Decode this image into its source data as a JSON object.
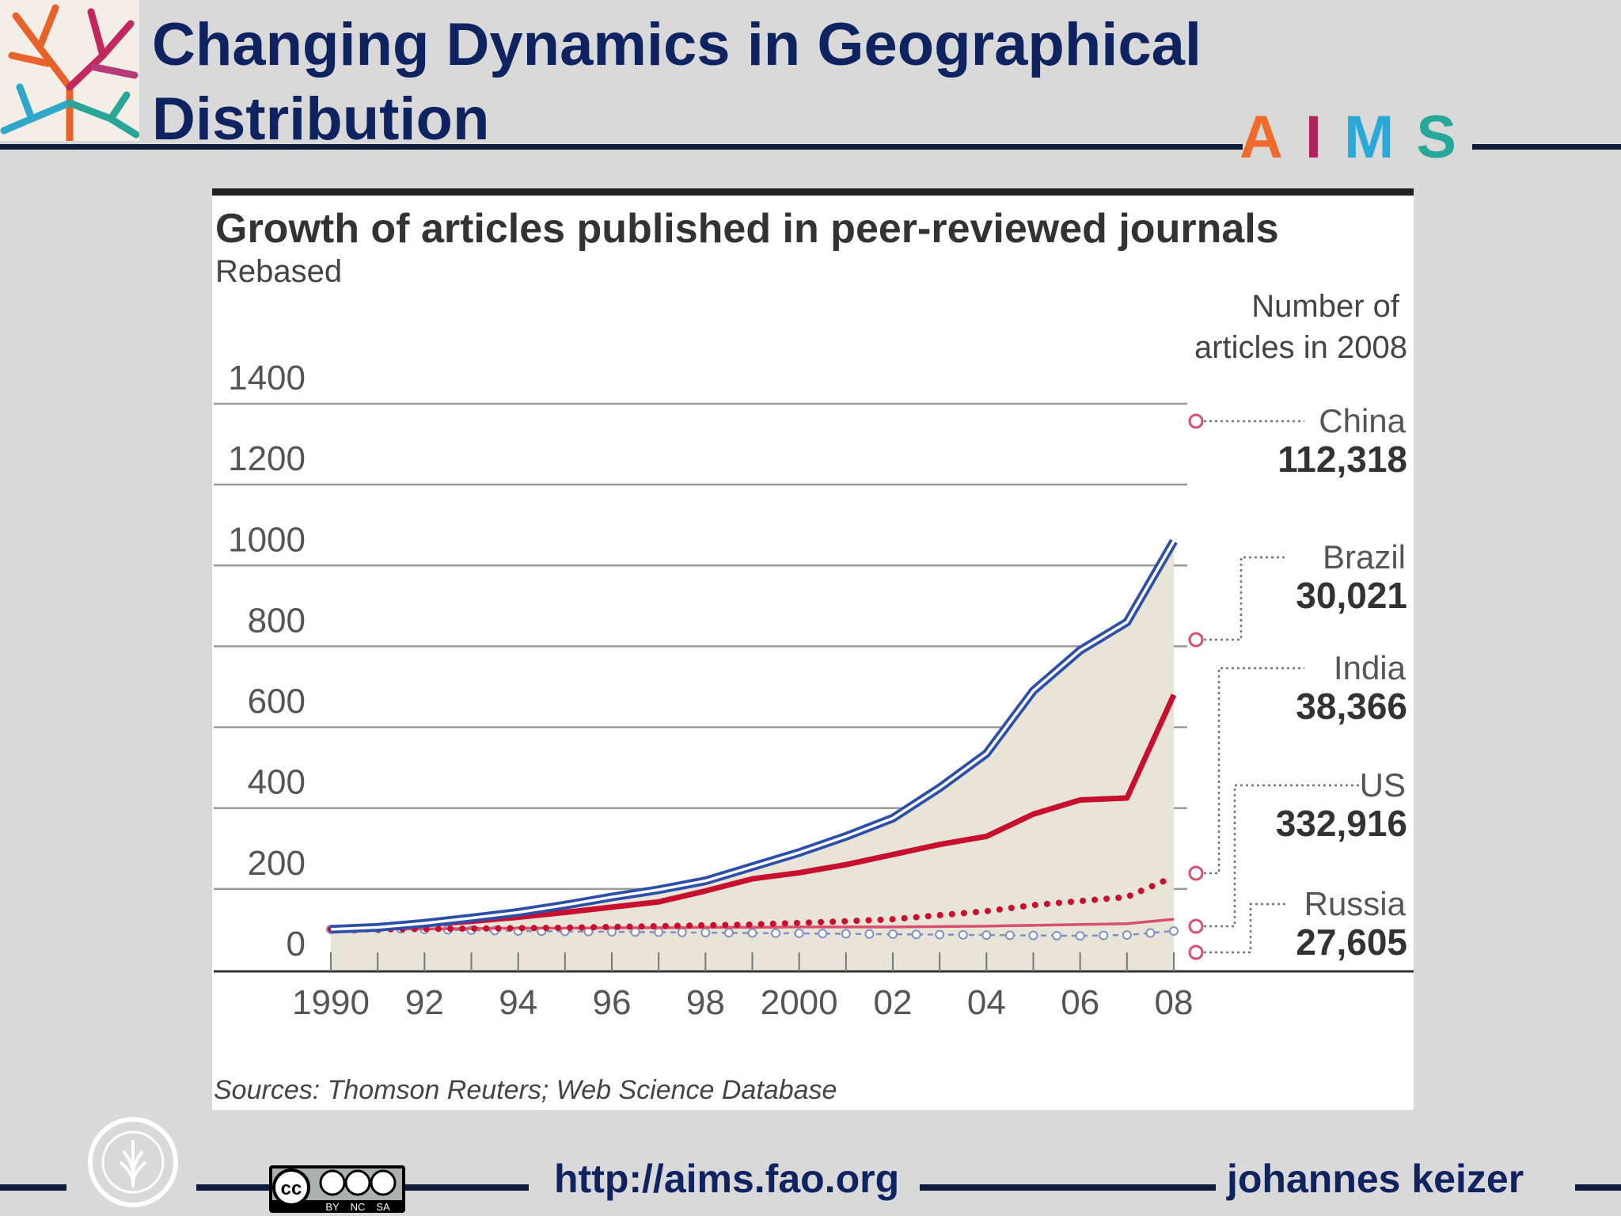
{
  "slide": {
    "title": "Changing Dynamics in Geographical Distribution",
    "aims_letters": [
      "A",
      "I",
      "M",
      "S"
    ],
    "aims_colors": [
      "#f06a2a",
      "#b3215c",
      "#29a9d8",
      "#27a89a"
    ],
    "footer_url": "http://aims.fao.org",
    "footer_author": "johannes keizer",
    "cc_labels": [
      "BY",
      "NC",
      "SA"
    ],
    "logo_icon": "tree-leaves-icon",
    "fao_icon": "fao-emblem-icon"
  },
  "chart_data": {
    "type": "line",
    "title": "Growth of articles published in peer-reviewed journals",
    "subtitle": "Rebased",
    "source": "Sources: Thomson Reuters; Web Science Database",
    "legend_title": "Number of articles in 2008",
    "ylim": [
      0,
      1400
    ],
    "xlim": [
      1990,
      2008
    ],
    "yticks": [
      0,
      200,
      400,
      600,
      800,
      1000,
      1200,
      1400
    ],
    "xtick_labels": [
      {
        "x": 1990,
        "label": "1990"
      },
      {
        "x": 1992,
        "label": "92"
      },
      {
        "x": 1994,
        "label": "94"
      },
      {
        "x": 1996,
        "label": "96"
      },
      {
        "x": 1998,
        "label": "98"
      },
      {
        "x": 2000,
        "label": "2000"
      },
      {
        "x": 2002,
        "label": "02"
      },
      {
        "x": 2004,
        "label": "04"
      },
      {
        "x": 2006,
        "label": "06"
      },
      {
        "x": 2008,
        "label": "08"
      }
    ],
    "x": [
      1990,
      1991,
      1992,
      1993,
      1994,
      1995,
      1996,
      1997,
      1998,
      1999,
      2000,
      2001,
      2002,
      2003,
      2004,
      2005,
      2006,
      2007,
      2008
    ],
    "grid": true,
    "legend_position": "right",
    "series": [
      {
        "name": "China",
        "value_2008": "112,318",
        "style": "double-blue",
        "color": "#2e4fa8",
        "values": [
          100,
          105,
          115,
          128,
          142,
          160,
          180,
          198,
          220,
          255,
          290,
          330,
          375,
          450,
          535,
          690,
          790,
          860,
          1060
        ]
      },
      {
        "name": "Brazil",
        "value_2008": "30,021",
        "style": "solid-red",
        "color": "#c8102e",
        "values": [
          100,
          105,
          112,
          120,
          130,
          142,
          155,
          168,
          195,
          225,
          240,
          260,
          285,
          310,
          330,
          385,
          420,
          425,
          680
        ]
      },
      {
        "name": "India",
        "value_2008": "38,366",
        "style": "dotted-red",
        "color": "#c8102e",
        "values": [
          100,
          100,
          101,
          102,
          103,
          104,
          106,
          108,
          110,
          112,
          116,
          120,
          125,
          135,
          145,
          160,
          170,
          180,
          230
        ]
      },
      {
        "name": "US",
        "value_2008": "332,916",
        "style": "solid-pink",
        "color": "#d8506e",
        "values": [
          100,
          101,
          101,
          102,
          103,
          103,
          104,
          104,
          105,
          105,
          106,
          106,
          106,
          107,
          108,
          110,
          112,
          114,
          125
        ]
      },
      {
        "name": "Russia",
        "value_2008": "27,605",
        "style": "dotted-blue-circles",
        "color": "#8090c0",
        "values": [
          100,
          102,
          100,
          98,
          96,
          95,
          94,
          93,
          92,
          91,
          90,
          89,
          88,
          87,
          86,
          85,
          84,
          86,
          96
        ]
      }
    ],
    "shaded_area_series": "China"
  }
}
